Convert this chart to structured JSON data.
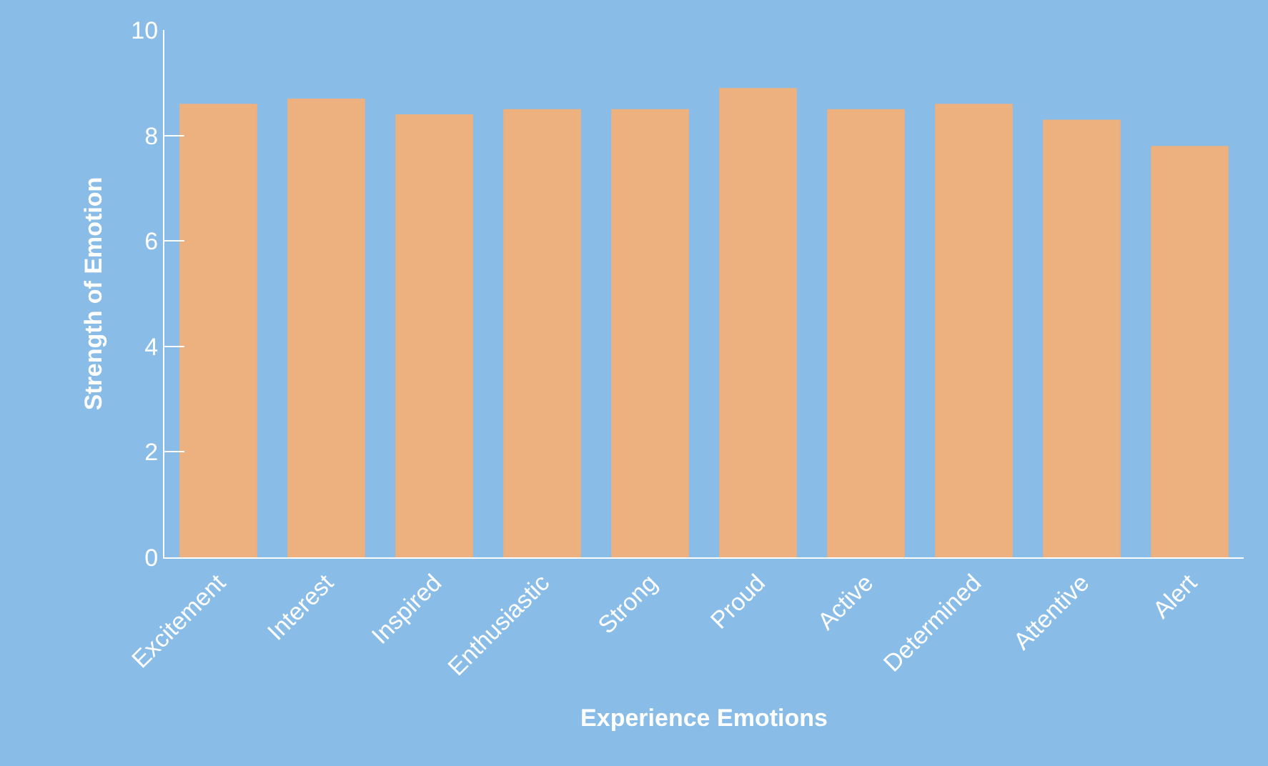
{
  "chart_data": {
    "type": "bar",
    "xlabel": "Experience Emotions",
    "ylabel": "Strength of Emotion",
    "categories": [
      "Excitement",
      "Interest",
      "Inspired",
      "Enthusiastic",
      "Strong",
      "Proud",
      "Active",
      "Determined",
      "Attentive",
      "Alert"
    ],
    "values": [
      8.6,
      8.7,
      8.4,
      8.5,
      8.5,
      8.9,
      8.5,
      8.6,
      8.3,
      7.8
    ],
    "color": "#edb07f",
    "ylim": [
      0,
      10
    ],
    "yticks": [
      0,
      2,
      4,
      6,
      8,
      10
    ],
    "grid": false,
    "legend": false
  }
}
